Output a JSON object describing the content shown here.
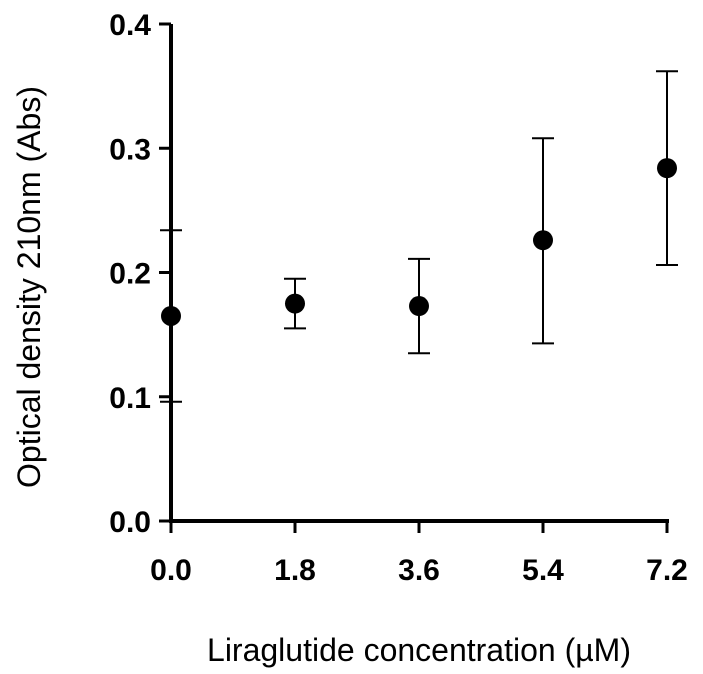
{
  "chart_data": {
    "type": "scatter",
    "title": "",
    "xlabel": "Liraglutide concentration (µM)",
    "ylabel": "Optical density 210nm (Abs)",
    "x": [
      0.0,
      1.8,
      3.6,
      5.4,
      7.2
    ],
    "x_tick_labels": [
      "0.0",
      "1.8",
      "3.6",
      "5.4",
      "7.2"
    ],
    "y_ticks": [
      0.0,
      0.1,
      0.2,
      0.3,
      0.4
    ],
    "y_tick_labels": [
      "0.0",
      "0.1",
      "0.2",
      "0.3",
      "0.4"
    ],
    "xlim": [
      0.0,
      7.2
    ],
    "ylim": [
      0.0,
      0.4
    ],
    "grid": false,
    "series": [
      {
        "values": [
          0.165,
          0.175,
          0.173,
          0.226,
          0.284
        ],
        "error_low": [
          0.096,
          0.155,
          0.135,
          0.143,
          0.206
        ],
        "error_high": [
          0.234,
          0.195,
          0.211,
          0.308,
          0.362
        ],
        "color": "#000000"
      }
    ]
  }
}
